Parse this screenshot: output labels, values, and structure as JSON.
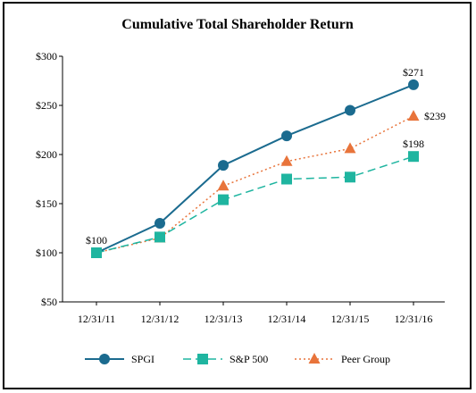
{
  "chart_data": {
    "type": "line",
    "title": "Cumulative Total Shareholder Return",
    "xlabel": "",
    "ylabel": "",
    "categories": [
      "12/31/11",
      "12/31/12",
      "12/31/13",
      "12/31/14",
      "12/31/15",
      "12/31/16"
    ],
    "ylim": [
      50,
      300
    ],
    "yticks": [
      300,
      250,
      200,
      150,
      100,
      50
    ],
    "ytick_labels": [
      "$300",
      "$250",
      "$200",
      "$150",
      "$100",
      "$50"
    ],
    "grid": false,
    "legend_position": "bottom",
    "series": [
      {
        "name": "SPGI",
        "values": [
          100,
          130,
          189,
          219,
          245,
          271
        ],
        "color": "#1b6b8f",
        "marker": "circle",
        "line": "solid"
      },
      {
        "name": "S&P 500",
        "values": [
          100,
          116,
          154,
          175,
          177,
          198
        ],
        "color": "#1fb5a0",
        "marker": "square",
        "line": "dashed"
      },
      {
        "name": "Peer Group",
        "values": [
          100,
          115,
          168,
          193,
          206,
          239
        ],
        "color": "#e8743b",
        "marker": "triangle",
        "line": "dotted"
      }
    ],
    "annotations": [
      {
        "text": "$100",
        "series": 0,
        "index": 0
      },
      {
        "text": "$271",
        "series": 0,
        "index": 5
      },
      {
        "text": "$239",
        "series": 2,
        "index": 5
      },
      {
        "text": "$198",
        "series": 1,
        "index": 5
      }
    ]
  }
}
